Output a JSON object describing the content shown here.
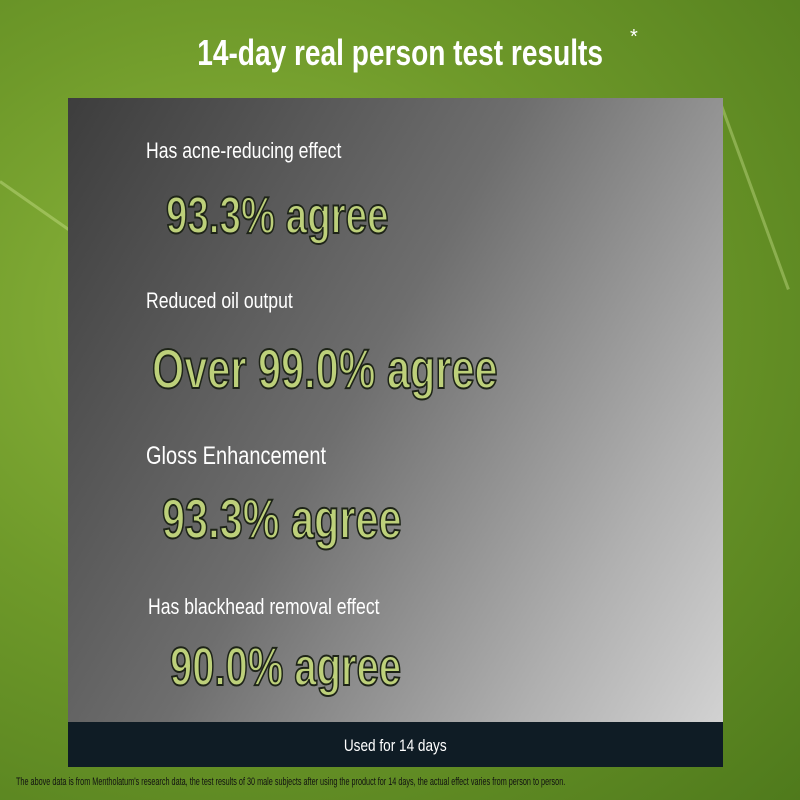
{
  "title": "14-day real person test results",
  "title_mark": "*",
  "items": [
    {
      "label": "Has acne-reducing effect",
      "value": "93.3% agree"
    },
    {
      "label": "Reduced oil output",
      "value": "Over 99.0% agree"
    },
    {
      "label": "Gloss Enhancement",
      "value": "93.3% agree"
    },
    {
      "label": "Has blackhead removal effect",
      "value": "90.0% agree"
    }
  ],
  "footer": "Used for 14 days",
  "disclaimer": "The above data is from Mentholatum's research data, the test results of 30 male subjects after using the product for 14 days, the actual effect varies from person to person.",
  "colors": {
    "value_text": "#bdd07a",
    "footer_bg": "#0f1c25",
    "background": "#6f9a2a"
  }
}
